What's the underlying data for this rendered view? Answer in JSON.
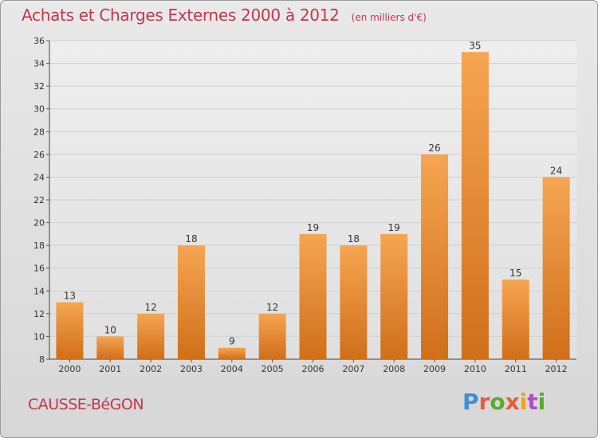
{
  "header": {
    "title": "Achats et Charges Externes 2000 à 2012",
    "unit_note": "(en milliers d'€)"
  },
  "footer": {
    "commune": "CAUSSE-BéGON",
    "brand": "Proxiti"
  },
  "colors": {
    "bar_light": "#f6a552",
    "bar_dark": "#d06f1a",
    "title": "#c4364d",
    "grid": "#cfcfcf"
  },
  "chart_data": {
    "type": "bar",
    "title": "Achats et Charges Externes 2000 à 2012",
    "subtitle": "(en milliers d'€)",
    "categories": [
      "2000",
      "2001",
      "2002",
      "2003",
      "2004",
      "2005",
      "2006",
      "2007",
      "2008",
      "2009",
      "2010",
      "2011",
      "2012"
    ],
    "values": [
      13,
      10,
      12,
      18,
      9,
      12,
      19,
      18,
      19,
      26,
      35,
      15,
      24
    ],
    "data_labels": [
      "13",
      "10",
      "12",
      "18",
      "9",
      "12",
      "19",
      "18",
      "19",
      "26",
      "35",
      "15",
      "24"
    ],
    "ylim": [
      8,
      36
    ],
    "yticks": [
      8,
      10,
      12,
      14,
      16,
      18,
      20,
      22,
      24,
      26,
      28,
      30,
      32,
      34,
      36
    ],
    "grid": true,
    "legend": "none"
  }
}
